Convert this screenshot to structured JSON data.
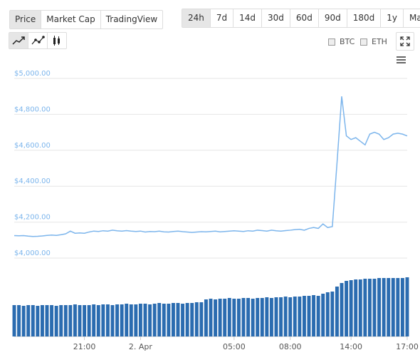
{
  "tabs": [
    "Price",
    "Market Cap",
    "TradingView"
  ],
  "ranges": [
    "24h",
    "7d",
    "14d",
    "30d",
    "60d",
    "90d",
    "180d",
    "1y",
    "Max"
  ],
  "compare": [
    "BTC",
    "ETH"
  ],
  "chart_data": {
    "type": "line",
    "categories": [
      null,
      null,
      null,
      null,
      null,
      null,
      null,
      null,
      null,
      null,
      null,
      null,
      null,
      null,
      null,
      "21:00",
      null,
      null,
      null,
      null,
      null,
      null,
      null,
      null,
      null,
      null,
      null,
      "2. Apr",
      null,
      null,
      null,
      null,
      null,
      null,
      null,
      null,
      null,
      null,
      null,
      null,
      null,
      null,
      null,
      null,
      null,
      null,
      null,
      "05:00",
      null,
      null,
      null,
      null,
      null,
      null,
      null,
      null,
      null,
      null,
      null,
      "08:00",
      null,
      null,
      null,
      null,
      null,
      null,
      null,
      null,
      null,
      null,
      null,
      null,
      "14:00",
      null,
      null,
      null,
      null,
      null,
      null,
      null,
      null,
      null,
      null,
      null,
      "17:00"
    ],
    "series": [
      {
        "color": "#7cb5ec",
        "values": [
          4125,
          4124,
          4125,
          4122,
          4120,
          4121,
          4123,
          4126,
          4128,
          4126,
          4130,
          4135,
          4150,
          4138,
          4140,
          4138,
          4145,
          4150,
          4148,
          4152,
          4150,
          4155,
          4152,
          4150,
          4153,
          4150,
          4148,
          4150,
          4145,
          4148,
          4147,
          4150,
          4146,
          4145,
          4148,
          4150,
          4147,
          4145,
          4143,
          4145,
          4147,
          4146,
          4148,
          4150,
          4146,
          4148,
          4150,
          4152,
          4150,
          4148,
          4152,
          4150,
          4155,
          4153,
          4150,
          4155,
          4152,
          4150,
          4153,
          4155,
          4158,
          4160,
          4155,
          4165,
          4170,
          4165,
          4190,
          4170,
          4175,
          4530,
          4900,
          4680,
          4660,
          4670,
          4650,
          4630,
          4690,
          4700,
          4690,
          4660,
          4670,
          4690,
          4695,
          4690,
          4680
        ]
      },
      {
        "type": "bar",
        "axis": "y2",
        "color": "#2b6cb0",
        "values": [
          44,
          44,
          43,
          44,
          44,
          43,
          44,
          44,
          44,
          43,
          44,
          44,
          44,
          45,
          44,
          44,
          44,
          45,
          44,
          45,
          45,
          44,
          45,
          45,
          46,
          45,
          45,
          46,
          46,
          45,
          46,
          47,
          46,
          46,
          47,
          47,
          46,
          47,
          47,
          48,
          48,
          52,
          53,
          52,
          53,
          53,
          54,
          53,
          53,
          54,
          54,
          53,
          54,
          54,
          55,
          54,
          55,
          55,
          56,
          55,
          56,
          56,
          57,
          57,
          58,
          57,
          60,
          62,
          63,
          70,
          75,
          78,
          79,
          80,
          80,
          81,
          81,
          81,
          82,
          82,
          82,
          82,
          82,
          82,
          83
        ]
      }
    ],
    "ylim": [
      4000,
      5000
    ],
    "yticks": [
      {
        "value": 4000,
        "label": "$4,000.00"
      },
      {
        "value": 4200,
        "label": "$4,200.00"
      },
      {
        "value": 4400,
        "label": "$4,400.00"
      },
      {
        "value": 4600,
        "label": "$4,600.00"
      },
      {
        "value": 4800,
        "label": "$4,800.00"
      },
      {
        "value": 5000,
        "label": "$5,000.00"
      }
    ],
    "y2lim": [
      0,
      100
    ],
    "grid": true
  }
}
